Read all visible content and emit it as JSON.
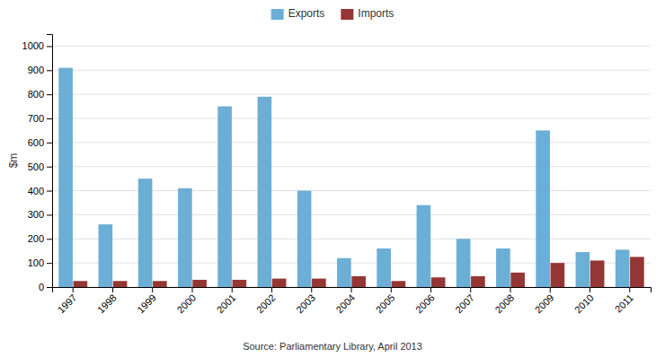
{
  "chart_data": {
    "type": "bar",
    "categories": [
      "1997",
      "1998",
      "1999",
      "2000",
      "2001",
      "2002",
      "2003",
      "2004",
      "2005",
      "2006",
      "2007",
      "2008",
      "2009",
      "2010",
      "2011"
    ],
    "series": [
      {
        "name": "Exports",
        "color": "#6BAED6",
        "values": [
          910,
          260,
          450,
          410,
          750,
          790,
          400,
          120,
          160,
          340,
          200,
          160,
          650,
          145,
          155
        ]
      },
      {
        "name": "Imports",
        "color": "#943634",
        "values": [
          25,
          25,
          25,
          30,
          30,
          35,
          35,
          45,
          25,
          40,
          45,
          60,
          100,
          110,
          125
        ]
      }
    ],
    "y_label": "$m",
    "ylim": [
      0,
      1050
    ],
    "yticks": [
      0,
      100,
      200,
      300,
      400,
      500,
      600,
      700,
      800,
      900,
      1000
    ],
    "grid": true,
    "legend": "top",
    "annotation": "Source: Parliamentary Library, April 2013"
  }
}
